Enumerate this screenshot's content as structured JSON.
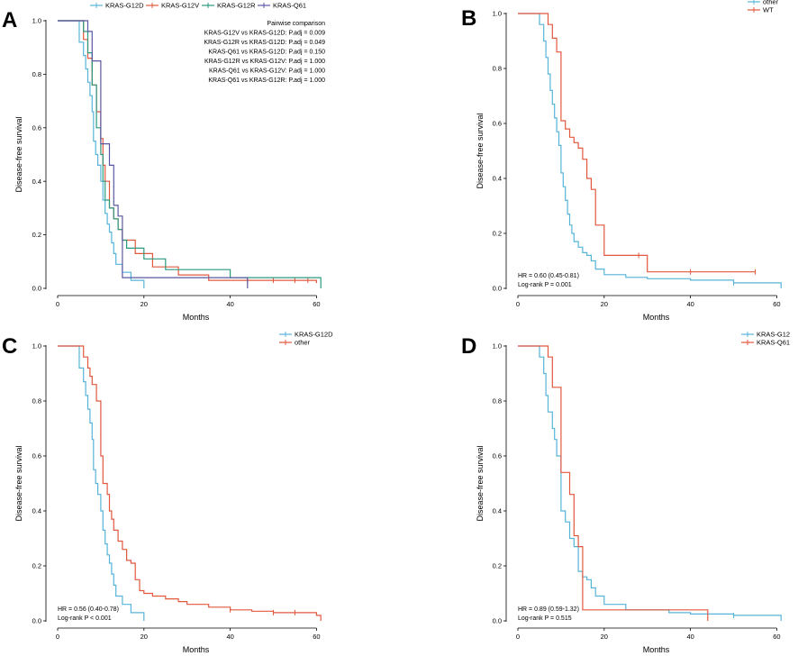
{
  "colors": {
    "blue": "#56b4d9",
    "red": "#e2583e",
    "green": "#2a9a7f",
    "purple": "#5a57a2",
    "axis": "#000000"
  },
  "chart_data": [
    {
      "id": "A",
      "type": "line",
      "panel_label": "A",
      "xlabel": "Months",
      "ylabel": "Disease-free survival",
      "xlim": [
        0,
        62
      ],
      "ylim": [
        0,
        1
      ],
      "xticks": [
        0,
        20,
        40,
        60
      ],
      "yticks": [
        0.0,
        0.2,
        0.4,
        0.6,
        0.8,
        1.0
      ],
      "legend_position": "top",
      "series": [
        {
          "name": "KRAS-G12D",
          "color": "#56b4d9",
          "steps": [
            [
              0,
              1
            ],
            [
              5,
              1
            ],
            [
              5,
              0.92
            ],
            [
              6,
              0.87
            ],
            [
              6.5,
              0.82
            ],
            [
              7,
              0.77
            ],
            [
              7.5,
              0.72
            ],
            [
              8,
              0.66
            ],
            [
              8.3,
              0.55
            ],
            [
              8.8,
              0.5
            ],
            [
              9.3,
              0.46
            ],
            [
              10,
              0.4
            ],
            [
              10.5,
              0.33
            ],
            [
              11,
              0.28
            ],
            [
              11.5,
              0.24
            ],
            [
              12,
              0.21
            ],
            [
              12.5,
              0.17
            ],
            [
              13,
              0.13
            ],
            [
              13.5,
              0.09
            ],
            [
              15,
              0.06
            ],
            [
              17,
              0.03
            ],
            [
              20,
              0.03
            ],
            [
              20,
              0.0
            ]
          ],
          "censor": []
        },
        {
          "name": "KRAS-G12V",
          "color": "#e2583e",
          "steps": [
            [
              0,
              1
            ],
            [
              6,
              1
            ],
            [
              6,
              0.93
            ],
            [
              7,
              0.86
            ],
            [
              8,
              0.76
            ],
            [
              9,
              0.66
            ],
            [
              10,
              0.56
            ],
            [
              10.5,
              0.46
            ],
            [
              11,
              0.4
            ],
            [
              12,
              0.3
            ],
            [
              13,
              0.26
            ],
            [
              14,
              0.22
            ],
            [
              15,
              0.18
            ],
            [
              18,
              0.13
            ],
            [
              22,
              0.08
            ],
            [
              28,
              0.05
            ],
            [
              35,
              0.03
            ],
            [
              60,
              0.03
            ],
            [
              60,
              0.02
            ]
          ],
          "censor": [
            44,
            50,
            55,
            58
          ]
        },
        {
          "name": "KRAS-G12R",
          "color": "#2a9a7f",
          "steps": [
            [
              0,
              1
            ],
            [
              6,
              1
            ],
            [
              6,
              0.96
            ],
            [
              7,
              0.88
            ],
            [
              8,
              0.76
            ],
            [
              9,
              0.6
            ],
            [
              10,
              0.5
            ],
            [
              10.5,
              0.4
            ],
            [
              11,
              0.33
            ],
            [
              12,
              0.3
            ],
            [
              13,
              0.26
            ],
            [
              14,
              0.22
            ],
            [
              15,
              0.18
            ],
            [
              16,
              0.15
            ],
            [
              20,
              0.11
            ],
            [
              25,
              0.07
            ],
            [
              40,
              0.07
            ],
            [
              40,
              0.04
            ],
            [
              61,
              0.04
            ],
            [
              61,
              0.0
            ]
          ],
          "censor": []
        },
        {
          "name": "KRAS-Q61",
          "color": "#5a57a2",
          "steps": [
            [
              0,
              1
            ],
            [
              7,
              1
            ],
            [
              7,
              0.96
            ],
            [
              8,
              0.85
            ],
            [
              10,
              0.85
            ],
            [
              10,
              0.54
            ],
            [
              12,
              0.46
            ],
            [
              13,
              0.31
            ],
            [
              14,
              0.27
            ],
            [
              15,
              0.04
            ],
            [
              44,
              0.04
            ],
            [
              44,
              0.0
            ]
          ],
          "censor": []
        }
      ],
      "annotations": {
        "title": "Pairwise comparison",
        "lines": [
          "KRAS-G12V vs KRAS-G12D: P.adj = 0.009",
          "KRAS-G12R vs KRAS-G12D: P.adj = 0.049",
          "KRAS-Q61 vs KRAS-G12D: P.adj = 0.150",
          "KRAS-G12R vs KRAS-G12V: P.adj = 1.000",
          "KRAS-Q61 vs KRAS-G12V: P.adj = 1.000",
          "KRAS-Q61 vs KRAS-G12R: P.adj = 1.000"
        ]
      }
    },
    {
      "id": "B",
      "type": "line",
      "panel_label": "B",
      "xlabel": "Months",
      "ylabel": "Disease-free survival",
      "xlim": [
        0,
        62
      ],
      "ylim": [
        0,
        1
      ],
      "xticks": [
        0,
        20,
        40,
        60
      ],
      "yticks": [
        0.0,
        0.2,
        0.4,
        0.6,
        0.8,
        1.0
      ],
      "legend_position": "top-right",
      "series": [
        {
          "name": "other",
          "color": "#56b4d9",
          "steps": [
            [
              0,
              1
            ],
            [
              5,
              1
            ],
            [
              5,
              0.96
            ],
            [
              6,
              0.9
            ],
            [
              6.5,
              0.84
            ],
            [
              7,
              0.78
            ],
            [
              7.5,
              0.72
            ],
            [
              8,
              0.67
            ],
            [
              8.5,
              0.62
            ],
            [
              9,
              0.57
            ],
            [
              9.5,
              0.52
            ],
            [
              10,
              0.42
            ],
            [
              10.5,
              0.37
            ],
            [
              11,
              0.32
            ],
            [
              11.5,
              0.27
            ],
            [
              12,
              0.23
            ],
            [
              12.5,
              0.2
            ],
            [
              13,
              0.17
            ],
            [
              14,
              0.15
            ],
            [
              15,
              0.13
            ],
            [
              16,
              0.12
            ],
            [
              17,
              0.1
            ],
            [
              18,
              0.07
            ],
            [
              20,
              0.05
            ],
            [
              25,
              0.04
            ],
            [
              30,
              0.035
            ],
            [
              40,
              0.03
            ],
            [
              50,
              0.02
            ],
            [
              60,
              0.02
            ],
            [
              61,
              0.0
            ]
          ],
          "censor": [
            50
          ]
        },
        {
          "name": "WT",
          "color": "#e2583e",
          "steps": [
            [
              0,
              1
            ],
            [
              7,
              1
            ],
            [
              7,
              0.96
            ],
            [
              8,
              0.91
            ],
            [
              9,
              0.86
            ],
            [
              10,
              0.86
            ],
            [
              10,
              0.61
            ],
            [
              11,
              0.58
            ],
            [
              12,
              0.55
            ],
            [
              13,
              0.53
            ],
            [
              14,
              0.51
            ],
            [
              15,
              0.47
            ],
            [
              16,
              0.4
            ],
            [
              17,
              0.36
            ],
            [
              18,
              0.23
            ],
            [
              20,
              0.12
            ],
            [
              28,
              0.12
            ],
            [
              30,
              0.06
            ],
            [
              55,
              0.06
            ]
          ],
          "censor": [
            28,
            40,
            55
          ]
        }
      ],
      "annotations": {
        "lines": [
          "HR = 0.60 (0.45-0.81)",
          "Log-rank P = 0.001"
        ]
      }
    },
    {
      "id": "C",
      "type": "line",
      "panel_label": "C",
      "xlabel": "Months",
      "ylabel": "Disease-free survival",
      "xlim": [
        0,
        62
      ],
      "ylim": [
        0,
        1
      ],
      "xticks": [
        0,
        20,
        40,
        60
      ],
      "yticks": [
        0.0,
        0.2,
        0.4,
        0.6,
        0.8,
        1.0
      ],
      "legend_position": "top-right",
      "series": [
        {
          "name": "KRAS-G12D",
          "color": "#56b4d9",
          "steps": [
            [
              0,
              1
            ],
            [
              5,
              1
            ],
            [
              5,
              0.92
            ],
            [
              6,
              0.87
            ],
            [
              6.5,
              0.82
            ],
            [
              7,
              0.77
            ],
            [
              7.5,
              0.72
            ],
            [
              8,
              0.66
            ],
            [
              8.3,
              0.55
            ],
            [
              8.8,
              0.5
            ],
            [
              9.3,
              0.46
            ],
            [
              10,
              0.4
            ],
            [
              10.5,
              0.33
            ],
            [
              11,
              0.28
            ],
            [
              11.5,
              0.24
            ],
            [
              12,
              0.21
            ],
            [
              12.5,
              0.17
            ],
            [
              13,
              0.13
            ],
            [
              13.5,
              0.09
            ],
            [
              15,
              0.06
            ],
            [
              17,
              0.03
            ],
            [
              20,
              0.03
            ],
            [
              20,
              0.0
            ]
          ],
          "censor": []
        },
        {
          "name": "other",
          "color": "#e2583e",
          "steps": [
            [
              0,
              1
            ],
            [
              6,
              1
            ],
            [
              6,
              0.96
            ],
            [
              7,
              0.92
            ],
            [
              7.5,
              0.89
            ],
            [
              8,
              0.86
            ],
            [
              9,
              0.8
            ],
            [
              10,
              0.8
            ],
            [
              10,
              0.6
            ],
            [
              10.5,
              0.5
            ],
            [
              11.5,
              0.46
            ],
            [
              12,
              0.4
            ],
            [
              12.5,
              0.37
            ],
            [
              13,
              0.33
            ],
            [
              14,
              0.29
            ],
            [
              15,
              0.26
            ],
            [
              16,
              0.22
            ],
            [
              17,
              0.21
            ],
            [
              18,
              0.15
            ],
            [
              19,
              0.11
            ],
            [
              20,
              0.1
            ],
            [
              22,
              0.09
            ],
            [
              25,
              0.08
            ],
            [
              28,
              0.07
            ],
            [
              30,
              0.06
            ],
            [
              35,
              0.05
            ],
            [
              40,
              0.04
            ],
            [
              45,
              0.035
            ],
            [
              50,
              0.03
            ],
            [
              60,
              0.03
            ],
            [
              60,
              0.02
            ],
            [
              61,
              0.0
            ]
          ],
          "censor": [
            40,
            50,
            55
          ]
        }
      ],
      "annotations": {
        "lines": [
          "HR = 0.56 (0.40-0.78)",
          "Log-rank P < 0.001"
        ]
      }
    },
    {
      "id": "D",
      "type": "line",
      "panel_label": "D",
      "xlabel": "Months",
      "ylabel": "Disease-free survival",
      "xlim": [
        0,
        62
      ],
      "ylim": [
        0,
        1
      ],
      "xticks": [
        0,
        20,
        40,
        60
      ],
      "yticks": [
        0.0,
        0.2,
        0.4,
        0.6,
        0.8,
        1.0
      ],
      "legend_position": "top-right",
      "series": [
        {
          "name": "KRAS-G12",
          "color": "#56b4d9",
          "steps": [
            [
              0,
              1
            ],
            [
              5,
              1
            ],
            [
              5,
              0.96
            ],
            [
              6,
              0.9
            ],
            [
              6.5,
              0.82
            ],
            [
              7,
              0.76
            ],
            [
              8,
              0.7
            ],
            [
              8.5,
              0.66
            ],
            [
              9,
              0.6
            ],
            [
              10,
              0.4
            ],
            [
              11,
              0.36
            ],
            [
              12,
              0.3
            ],
            [
              13,
              0.27
            ],
            [
              14,
              0.18
            ],
            [
              15,
              0.16
            ],
            [
              16,
              0.15
            ],
            [
              17,
              0.12
            ],
            [
              18,
              0.09
            ],
            [
              20,
              0.06
            ],
            [
              25,
              0.04
            ],
            [
              35,
              0.03
            ],
            [
              40,
              0.025
            ],
            [
              50,
              0.02
            ],
            [
              60,
              0.02
            ],
            [
              61,
              0.0
            ]
          ],
          "censor": [
            50
          ]
        },
        {
          "name": "KRAS-Q61",
          "color": "#e2583e",
          "steps": [
            [
              0,
              1
            ],
            [
              7,
              1
            ],
            [
              7,
              0.96
            ],
            [
              8,
              0.85
            ],
            [
              10,
              0.85
            ],
            [
              10,
              0.54
            ],
            [
              12,
              0.46
            ],
            [
              13,
              0.31
            ],
            [
              14,
              0.27
            ],
            [
              15,
              0.04
            ],
            [
              44,
              0.04
            ],
            [
              44,
              0.0
            ]
          ],
          "censor": []
        }
      ],
      "annotations": {
        "lines": [
          "HR = 0.89 (0.59-1.32)",
          "Log-rank P = 0.515"
        ]
      }
    }
  ]
}
